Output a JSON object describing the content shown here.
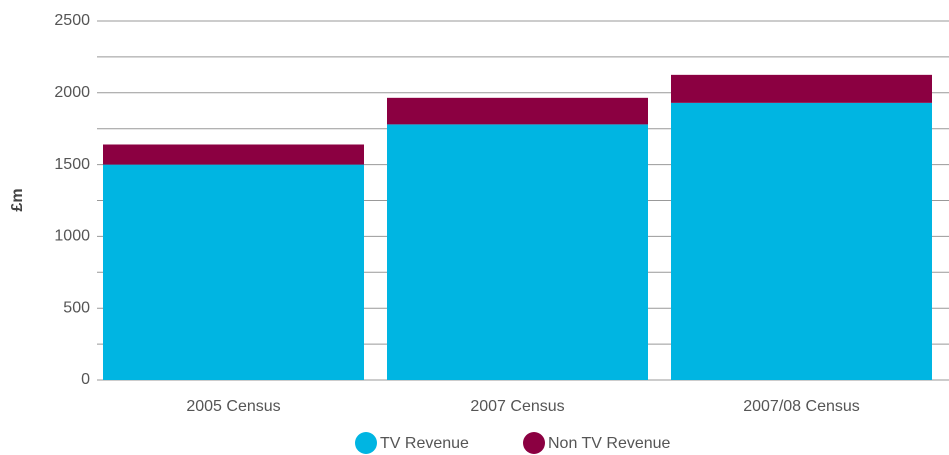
{
  "chart_data": {
    "type": "bar",
    "stacked": true,
    "y_label": "£m",
    "categories": [
      "2005 Census",
      "2007 Census",
      "2007/08 Census"
    ],
    "series": [
      {
        "name": "TV Revenue",
        "color": "#00b5e2",
        "values": [
          1500,
          1780,
          1930
        ]
      },
      {
        "name": "Non TV Revenue",
        "color": "#8b0041",
        "values": [
          140,
          185,
          195
        ]
      }
    ],
    "ylim": [
      0,
      2500
    ],
    "yticks": [
      0,
      500,
      1000,
      1500,
      2000,
      2500
    ],
    "minor_yticks": [
      250,
      750,
      1250,
      1750,
      2250
    ],
    "grid": true,
    "legend": "bottom"
  }
}
